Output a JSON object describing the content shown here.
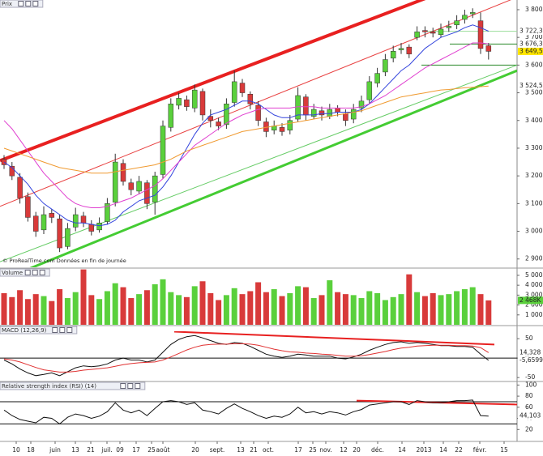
{
  "chart_data": [
    {
      "type": "candlestick",
      "title": "Prix",
      "footnote": "© ProRealTime.com  Données en fin de journée",
      "ylim": [
        2870,
        3835
      ],
      "yticks": [
        {
          "value": 3800,
          "label": "3 800"
        },
        {
          "value": 3700,
          "label": "3 700"
        },
        {
          "value": 3600,
          "label": "3 600"
        },
        {
          "value": 3500,
          "label": "3 500"
        },
        {
          "value": 3400,
          "label": "3 400"
        },
        {
          "value": 3300,
          "label": "3 300"
        },
        {
          "value": 3200,
          "label": "3 200"
        },
        {
          "value": 3100,
          "label": "3 100"
        },
        {
          "value": 3000,
          "label": "3 000"
        },
        {
          "value": 2900,
          "label": "2 900"
        }
      ],
      "candles": {
        "up_color": "#5ad03c",
        "down_color": "#d83a3a",
        "last_label": "3 649,5",
        "label_color": "#ffe600",
        "open": [
          3260,
          3235,
          3195,
          3125,
          3055,
          3005,
          3065,
          3045,
          2945,
          3015,
          3055,
          3025,
          3005,
          3035,
          3105,
          3245,
          3175,
          3145,
          3175,
          3105,
          3205,
          3375,
          3455,
          3475,
          3445,
          3505,
          3415,
          3395,
          3385,
          3465,
          3535,
          3495,
          3455,
          3395,
          3365,
          3375,
          3365,
          3405,
          3485,
          3415,
          3435,
          3415,
          3445,
          3425,
          3405,
          3445,
          3475,
          3535,
          3575,
          3625,
          3655,
          3665,
          3700,
          3725,
          3720,
          3710,
          3735,
          3745,
          3765,
          3785,
          3760,
          3670
        ],
        "high": [
          3275,
          3250,
          3210,
          3140,
          3070,
          3090,
          3080,
          3060,
          3030,
          3085,
          3070,
          3040,
          3050,
          3120,
          3280,
          3260,
          3190,
          3200,
          3185,
          3215,
          3400,
          3480,
          3500,
          3490,
          3530,
          3515,
          3440,
          3410,
          3480,
          3580,
          3550,
          3505,
          3470,
          3410,
          3400,
          3390,
          3420,
          3520,
          3495,
          3460,
          3450,
          3460,
          3455,
          3440,
          3460,
          3490,
          3560,
          3590,
          3640,
          3670,
          3680,
          3675,
          3740,
          3740,
          3735,
          3750,
          3760,
          3780,
          3800,
          3805,
          3790,
          3680
        ],
        "low": [
          3225,
          3185,
          3100,
          3035,
          2980,
          2990,
          3030,
          2925,
          2935,
          3000,
          3015,
          2985,
          2995,
          3025,
          3090,
          3165,
          3130,
          3135,
          3080,
          3060,
          3190,
          3360,
          3440,
          3435,
          3430,
          3400,
          3375,
          3365,
          3370,
          3450,
          3485,
          3440,
          3380,
          3340,
          3350,
          3345,
          3350,
          3395,
          3400,
          3405,
          3400,
          3405,
          3415,
          3380,
          3390,
          3430,
          3460,
          3520,
          3560,
          3610,
          3640,
          3625,
          3690,
          3700,
          3700,
          3700,
          3720,
          3730,
          3750,
          3770,
          3640,
          3620
        ],
        "close": [
          3240,
          3200,
          3120,
          3050,
          3000,
          3060,
          3050,
          2940,
          3010,
          3060,
          3030,
          3000,
          3030,
          3100,
          3250,
          3180,
          3150,
          3180,
          3100,
          3200,
          3380,
          3460,
          3480,
          3450,
          3510,
          3420,
          3400,
          3380,
          3460,
          3540,
          3500,
          3460,
          3400,
          3360,
          3380,
          3360,
          3400,
          3490,
          3420,
          3440,
          3420,
          3440,
          3430,
          3400,
          3440,
          3470,
          3540,
          3570,
          3620,
          3650,
          3660,
          3640,
          3720,
          3720,
          3715,
          3730,
          3740,
          3760,
          3780,
          3790,
          3660,
          3649.5
        ]
      },
      "series": [
        {
          "color": "#3344dd",
          "last_label": "3 722,3",
          "values": [
            3250,
            3230,
            3200,
            3170,
            3130,
            3100,
            3080,
            3060,
            3040,
            3030,
            3030,
            3025,
            3020,
            3025,
            3040,
            3070,
            3090,
            3110,
            3120,
            3130,
            3160,
            3200,
            3250,
            3300,
            3350,
            3390,
            3420,
            3430,
            3440,
            3455,
            3470,
            3470,
            3460,
            3440,
            3420,
            3410,
            3410,
            3420,
            3420,
            3420,
            3425,
            3425,
            3430,
            3430,
            3430,
            3440,
            3460,
            3490,
            3520,
            3550,
            3580,
            3600,
            3630,
            3660,
            3680,
            3700,
            3710,
            3720,
            3735,
            3745,
            3735,
            3722.3
          ]
        },
        {
          "color": "#e040d0",
          "last_label": "3 676,3",
          "values": [
            3400,
            3370,
            3330,
            3290,
            3250,
            3210,
            3180,
            3150,
            3120,
            3100,
            3090,
            3085,
            3085,
            3090,
            3100,
            3110,
            3120,
            3135,
            3150,
            3165,
            3190,
            3220,
            3250,
            3280,
            3310,
            3330,
            3350,
            3370,
            3390,
            3405,
            3420,
            3430,
            3440,
            3445,
            3445,
            3445,
            3445,
            3450,
            3450,
            3450,
            3445,
            3445,
            3445,
            3445,
            3445,
            3450,
            3460,
            3475,
            3490,
            3510,
            3530,
            3550,
            3570,
            3590,
            3605,
            3620,
            3635,
            3650,
            3665,
            3680,
            3680,
            3676.3
          ]
        },
        {
          "color": "#f09a30",
          "last_label": "3 524,5",
          "values": [
            3300,
            3290,
            3280,
            3270,
            3260,
            3250,
            3240,
            3230,
            3225,
            3220,
            3215,
            3210,
            3210,
            3210,
            3215,
            3220,
            3225,
            3230,
            3235,
            3240,
            3250,
            3260,
            3275,
            3290,
            3300,
            3310,
            3320,
            3330,
            3340,
            3350,
            3360,
            3365,
            3370,
            3375,
            3380,
            3385,
            3390,
            3395,
            3400,
            3405,
            3410,
            3415,
            3420,
            3425,
            3430,
            3435,
            3445,
            3455,
            3465,
            3475,
            3485,
            3490,
            3495,
            3500,
            3505,
            3510,
            3512,
            3515,
            3518,
            3520,
            3522,
            3524.5
          ]
        }
      ],
      "trendlines": [
        {
          "color": "#e82020",
          "width": 4,
          "values": [
            3255,
            3967
          ]
        },
        {
          "color": "#e84040",
          "width": 1,
          "values": [
            3090,
            3845
          ]
        },
        {
          "color": "#66cc66",
          "width": 1,
          "values": [
            2890,
            3600
          ]
        },
        {
          "color": "#44cc33",
          "width": 3,
          "values": [
            2822,
            3580
          ]
        }
      ],
      "levels": [
        {
          "value": 3722,
          "color": "#99dd99"
        },
        {
          "value": 3676,
          "color": "#2a8a2a"
        },
        {
          "value": 3600,
          "color": "#2a8a2a"
        }
      ]
    },
    {
      "type": "bar",
      "title": "Volume",
      "ylim": [
        0,
        5650
      ],
      "last_label": "2 468K",
      "label_color": "#5ad03c",
      "yticks": [
        {
          "value": 5000,
          "label": "5 000K"
        },
        {
          "value": 4000,
          "label": "4 000K"
        },
        {
          "value": 3000,
          "label": "3 000K"
        },
        {
          "value": 2000,
          "label": "2 000K"
        },
        {
          "value": 1000,
          "label": "1 000K"
        }
      ],
      "values": [
        3200,
        2800,
        3500,
        2600,
        3100,
        2900,
        2400,
        3600,
        2700,
        3300,
        5600,
        3000,
        2600,
        3400,
        4200,
        3800,
        2700,
        3100,
        3500,
        4100,
        4600,
        3300,
        3000,
        2800,
        3900,
        4400,
        3200,
        2500,
        3000,
        3700,
        3100,
        3400,
        4300,
        3300,
        3600,
        2900,
        3200,
        3900,
        3800,
        2700,
        3000,
        4500,
        3300,
        3100,
        3000,
        2700,
        3400,
        3200,
        2500,
        2800,
        3100,
        5100,
        3300,
        2900,
        3200,
        3000,
        3100,
        3400,
        3600,
        3800,
        3100,
        2468
      ]
    },
    {
      "type": "line",
      "title": "MACD (12,26,9)",
      "ylim": [
        -58,
        69
      ],
      "yticks": [
        50,
        0,
        -50
      ],
      "series": [
        {
          "color": "#111111",
          "last_label": "-5,6599",
          "values": [
            -5,
            -15,
            -28,
            -38,
            -45,
            -42,
            -38,
            -45,
            -35,
            -25,
            -20,
            -22,
            -20,
            -15,
            -5,
            0,
            -5,
            -5,
            -10,
            -5,
            15,
            35,
            48,
            55,
            58,
            52,
            45,
            38,
            35,
            40,
            38,
            30,
            20,
            10,
            5,
            2,
            5,
            10,
            8,
            5,
            5,
            5,
            0,
            -2,
            3,
            10,
            20,
            28,
            35,
            40,
            42,
            38,
            40,
            38,
            35,
            32,
            32,
            30,
            30,
            28,
            10,
            -5.6599
          ]
        },
        {
          "color": "#e03030",
          "last_label": "14,328",
          "values": [
            -2,
            -5,
            -10,
            -17,
            -24,
            -30,
            -33,
            -36,
            -36,
            -34,
            -31,
            -29,
            -27,
            -25,
            -21,
            -17,
            -14,
            -12,
            -11,
            -10,
            -5,
            3,
            12,
            21,
            28,
            33,
            35,
            36,
            36,
            37,
            37,
            36,
            33,
            28,
            23,
            19,
            16,
            15,
            13,
            12,
            10,
            9,
            7,
            5,
            5,
            6,
            9,
            13,
            17,
            22,
            26,
            28,
            31,
            32,
            33,
            33,
            33,
            32,
            32,
            31,
            27,
            14.328
          ]
        }
      ],
      "trendlines": [
        {
          "color": "#e82020",
          "width": 2,
          "values": [
            68,
            35
          ]
        }
      ],
      "levels": [
        {
          "value": 0,
          "color": "#111111"
        }
      ]
    },
    {
      "type": "line",
      "title": "Relative strength index (RSI) (14)",
      "ylim": [
        0,
        102
      ],
      "yticks": [
        100,
        80,
        60,
        40,
        20
      ],
      "series": [
        {
          "color": "#111111",
          "last_label": "44,103",
          "values": [
            55,
            45,
            38,
            35,
            32,
            42,
            40,
            30,
            42,
            48,
            45,
            40,
            44,
            52,
            68,
            55,
            50,
            55,
            45,
            58,
            70,
            72,
            70,
            65,
            68,
            55,
            52,
            48,
            58,
            66,
            58,
            52,
            45,
            40,
            44,
            42,
            48,
            60,
            50,
            52,
            48,
            52,
            50,
            46,
            52,
            56,
            64,
            66,
            68,
            70,
            70,
            65,
            72,
            70,
            68,
            68,
            70,
            72,
            72,
            73,
            45,
            44.103
          ]
        }
      ],
      "trendlines": [
        {
          "color": "#e82020",
          "width": 2,
          "values": [
            72,
            65
          ]
        }
      ],
      "levels": [
        {
          "value": 70,
          "color": "#111111"
        },
        {
          "value": 30,
          "color": "#111111"
        }
      ]
    }
  ],
  "x_axis": {
    "labels": [
      "10",
      "18",
      "juin",
      "13",
      "21",
      "juil.",
      "09",
      "17",
      "25",
      "août",
      "20",
      "sept.",
      "13",
      "21",
      "oct.",
      "17",
      "25",
      "nov.",
      "12",
      "20",
      "déc.",
      "14",
      "2013",
      "14",
      "22",
      "févr.",
      "15"
    ]
  }
}
